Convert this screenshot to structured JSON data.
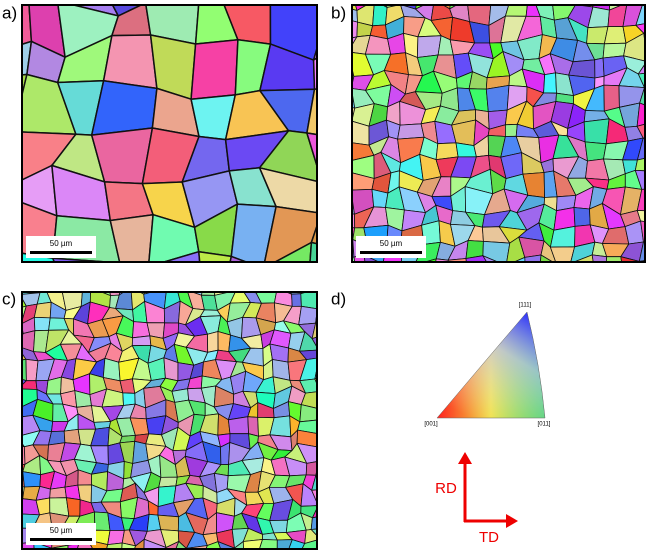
{
  "panels": [
    {
      "label": "a)",
      "scale_bar": "50 µm"
    },
    {
      "label": "b)",
      "scale_bar": "50 µm"
    },
    {
      "label": "c)",
      "scale_bar": "50 µm"
    },
    {
      "label": "d)"
    }
  ],
  "ipf": {
    "corners": [
      "[001]",
      "[011]",
      "[111]"
    ]
  },
  "axes": {
    "rd": "RD",
    "td": "TD"
  }
}
